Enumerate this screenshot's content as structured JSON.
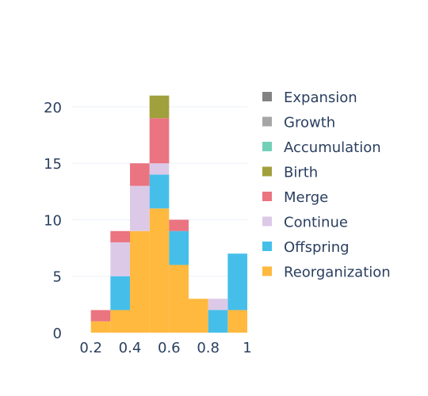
{
  "chart_data": {
    "type": "bar",
    "stacked": true,
    "bin_edges": [
      0.1,
      0.2,
      0.3,
      0.4,
      0.5,
      0.6,
      0.7,
      0.8,
      0.9,
      1.0
    ],
    "categories": [
      "0.1–0.2",
      "0.2–0.3",
      "0.3–0.4",
      "0.4–0.5",
      "0.5–0.6",
      "0.6–0.7",
      "0.7–0.8",
      "0.8–0.9",
      "0.9–1.0"
    ],
    "series": [
      {
        "name": "Reorganization",
        "color": "#FFB93F",
        "values": [
          0,
          1,
          2,
          9,
          11,
          6,
          3,
          0,
          2
        ]
      },
      {
        "name": "Offspring",
        "color": "#45BFEA",
        "values": [
          0,
          0,
          3,
          0,
          3,
          3,
          0,
          2,
          5
        ]
      },
      {
        "name": "Continue",
        "color": "#DCC9E8",
        "values": [
          0,
          0,
          3,
          4,
          1,
          0,
          0,
          1,
          0
        ]
      },
      {
        "name": "Merge",
        "color": "#EA7480",
        "values": [
          0,
          1,
          1,
          2,
          4,
          1,
          0,
          0,
          0
        ]
      },
      {
        "name": "Birth",
        "color": "#A0A03C",
        "values": [
          0,
          0,
          0,
          0,
          2,
          0,
          0,
          0,
          0
        ]
      },
      {
        "name": "Accumulation",
        "color": "#72D0B8",
        "values": [
          0,
          0,
          0,
          0,
          0,
          0,
          0,
          0,
          0
        ]
      },
      {
        "name": "Growth",
        "color": "#A6A6A6",
        "values": [
          0,
          0,
          0,
          0,
          0,
          0,
          0,
          0,
          0
        ]
      },
      {
        "name": "Expansion",
        "color": "#828282",
        "values": [
          0,
          0,
          0,
          0,
          0,
          0,
          0,
          0,
          0
        ]
      }
    ],
    "legend_order": [
      "Expansion",
      "Growth",
      "Accumulation",
      "Birth",
      "Merge",
      "Continue",
      "Offspring",
      "Reorganization"
    ],
    "x_ticks": [
      "0.2",
      "0.4",
      "0.6",
      "0.8",
      "1"
    ],
    "x_tick_values": [
      0.2,
      0.4,
      0.6,
      0.8,
      1.0
    ],
    "y_ticks": [
      "0",
      "5",
      "10",
      "15",
      "20"
    ],
    "y_tick_values": [
      0,
      5,
      10,
      15,
      20
    ],
    "xlim": [
      0.1,
      1.0
    ],
    "ylim": [
      0,
      22.1
    ],
    "title": "",
    "xlabel": "",
    "ylabel": "",
    "grid": true,
    "legend_position": "right"
  }
}
